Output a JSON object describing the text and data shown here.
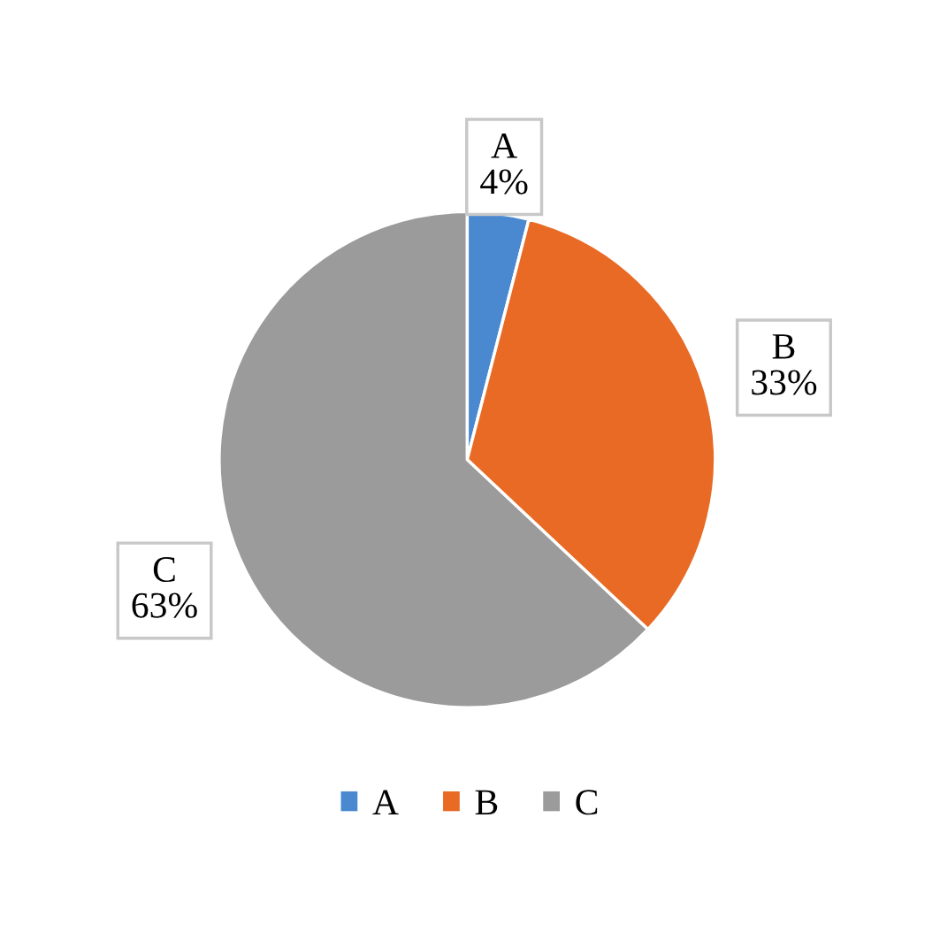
{
  "chart_data": {
    "type": "pie",
    "categories": [
      "A",
      "B",
      "C"
    ],
    "values": [
      4,
      33,
      63
    ],
    "colors": [
      "#4a89d0",
      "#e86a24",
      "#9b9b9b"
    ],
    "value_labels": [
      "4%",
      "33%",
      "63%"
    ],
    "legend": "bottom"
  }
}
